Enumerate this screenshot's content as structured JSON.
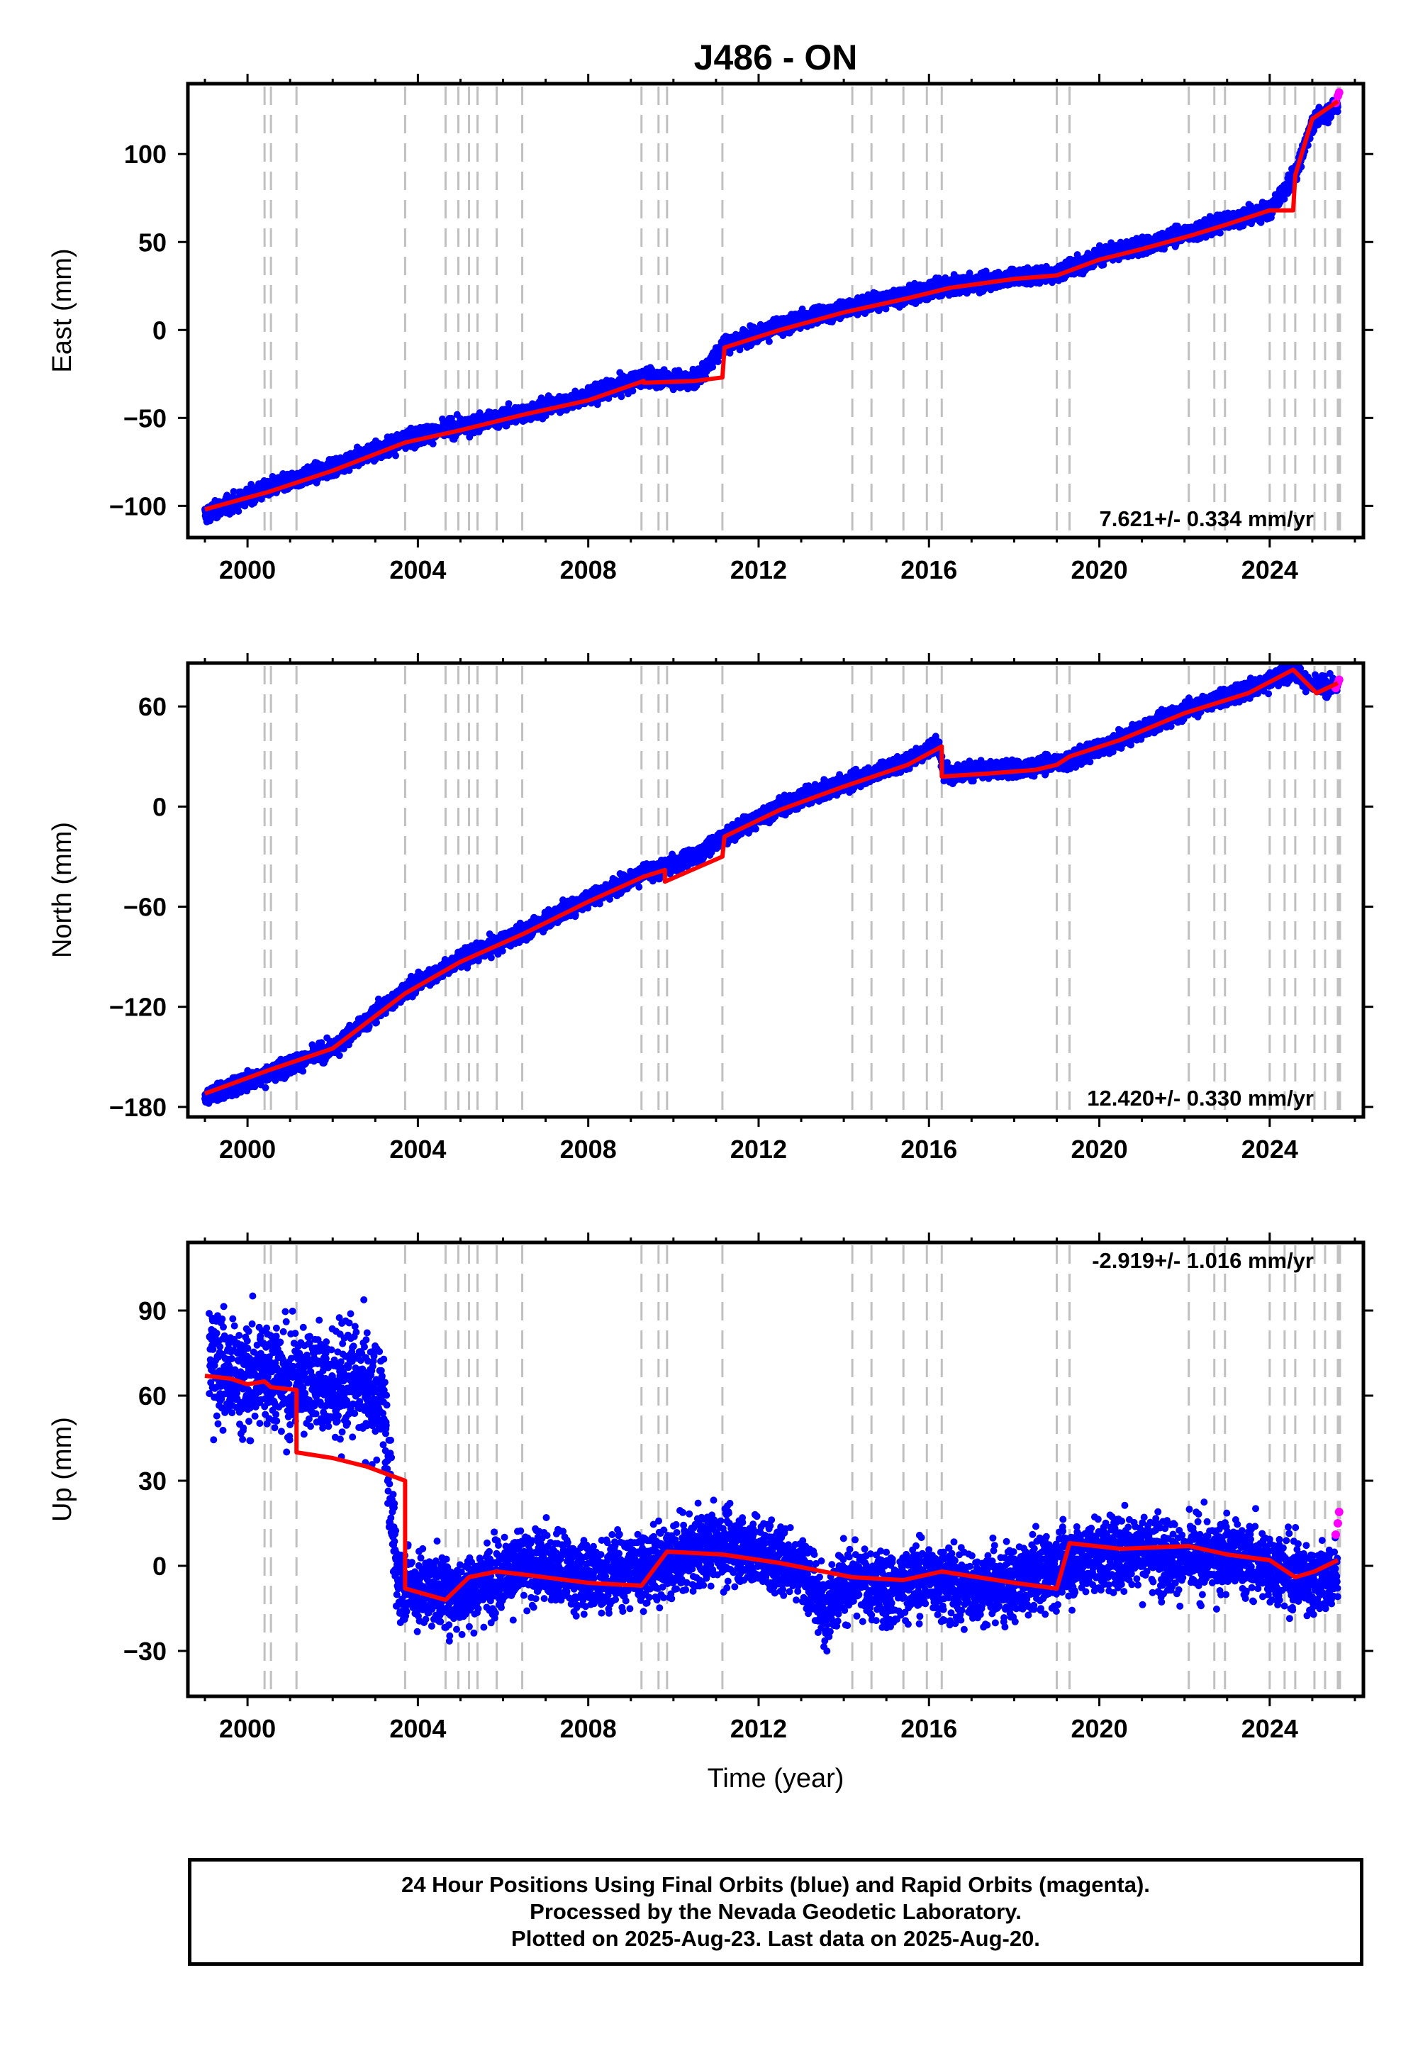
{
  "title": "J486 - ON",
  "footer": {
    "line1": "24 Hour Positions Using Final Orbits (blue) and Rapid Orbits (magenta).",
    "line2": "Processed by the Nevada Geodetic Laboratory.",
    "line3": "Plotted on 2025-Aug-23. Last data on 2025-Aug-20."
  },
  "colors": {
    "final_orbits": "#0000ff",
    "rapid_orbits": "#ff00ff",
    "model": "#ff0000",
    "event_lines": "#c0c0c0"
  },
  "chart_data": [
    {
      "type": "scatter",
      "panel": "east",
      "ylabel": "East (mm)",
      "xlabel": "",
      "xlim": [
        1998.6,
        2026.2
      ],
      "ylim": [
        -118,
        140
      ],
      "xticks": [
        2000,
        2004,
        2008,
        2012,
        2016,
        2020,
        2024
      ],
      "yticks": [
        -100,
        -50,
        0,
        50,
        100
      ],
      "rate": "7.621+/- 0.334 mm/yr",
      "rate_position": "bottom-right",
      "series": [
        {
          "role": "final_orbits_daily_positions",
          "x": [
            1999.0,
            2000.5,
            2002.0,
            2003.7,
            2005.0,
            2006.5,
            2008.0,
            2009.3,
            2010.5,
            2011.2,
            2012.5,
            2014.0,
            2015.5,
            2016.5,
            2018.0,
            2019.0,
            2020.0,
            2021.0,
            2022.2,
            2023.0,
            2024.0,
            2024.6,
            2025.0,
            2025.6
          ],
          "values": [
            -105,
            -90,
            -78,
            -62,
            -55,
            -47,
            -38,
            -27,
            -29,
            -8,
            2,
            12,
            20,
            25,
            30,
            32,
            42,
            48,
            56,
            62,
            68,
            88,
            118,
            128
          ]
        },
        {
          "role": "rapid_orbits_daily_positions",
          "x": [
            2025.55,
            2025.6,
            2025.63
          ],
          "values": [
            129,
            133,
            135
          ]
        },
        {
          "role": "model_fit",
          "x": [
            1999.0,
            2000.5,
            2002.0,
            2003.7,
            2005.0,
            2006.5,
            2008.0,
            2009.3,
            2009.3,
            2010.5,
            2011.15,
            2011.2,
            2012.5,
            2014.0,
            2015.5,
            2016.5,
            2018.0,
            2019.0,
            2020.0,
            2021.0,
            2022.2,
            2023.0,
            2024.0,
            2024.55,
            2024.6,
            2025.0,
            2025.6
          ],
          "values": [
            -102,
            -92,
            -80,
            -64,
            -57,
            -48,
            -40,
            -29,
            -30,
            -29,
            -27,
            -10,
            0,
            10,
            18,
            24,
            29,
            31,
            40,
            46,
            54,
            60,
            68,
            68,
            88,
            120,
            130
          ]
        }
      ],
      "event_lines_x": [
        2000.4,
        2000.55,
        2001.15,
        2003.7,
        2004.65,
        2004.95,
        2005.2,
        2005.4,
        2005.85,
        2006.45,
        2009.25,
        2009.65,
        2009.85,
        2011.15,
        2014.2,
        2014.65,
        2015.4,
        2015.95,
        2016.3,
        2019.0,
        2019.3,
        2022.1,
        2022.7,
        2022.95,
        2024.0,
        2024.35,
        2024.6,
        2025.05,
        2025.3,
        2025.6,
        2025.65
      ]
    },
    {
      "type": "scatter",
      "panel": "north",
      "ylabel": "North (mm)",
      "xlabel": "",
      "xlim": [
        1998.6,
        2026.2
      ],
      "ylim": [
        -186,
        86
      ],
      "xticks": [
        2000,
        2004,
        2008,
        2012,
        2016,
        2020,
        2024
      ],
      "yticks": [
        -180,
        -120,
        -60,
        0,
        60
      ],
      "rate": "12.420+/- 0.330 mm/yr",
      "rate_position": "bottom-right",
      "series": [
        {
          "role": "final_orbits_daily_positions",
          "x": [
            1999.0,
            2000.5,
            2002.0,
            2003.7,
            2005.0,
            2006.5,
            2008.0,
            2009.3,
            2009.8,
            2010.5,
            2011.2,
            2012.5,
            2014.0,
            2015.5,
            2016.2,
            2016.35,
            2017.5,
            2018.5,
            2019.3,
            2020.5,
            2022.0,
            2023.5,
            2024.55,
            2025.0,
            2025.6
          ],
          "values": [
            -174,
            -160,
            -145,
            -110,
            -92,
            -75,
            -55,
            -40,
            -37,
            -30,
            -18,
            0,
            14,
            27,
            38,
            20,
            22,
            24,
            28,
            40,
            58,
            70,
            82,
            72,
            72
          ]
        },
        {
          "role": "rapid_orbits_daily_positions",
          "x": [
            2025.55,
            2025.6,
            2025.63
          ],
          "values": [
            71,
            74,
            76
          ]
        },
        {
          "role": "model_fit",
          "x": [
            1999.0,
            2000.5,
            2002.0,
            2003.7,
            2005.0,
            2006.5,
            2008.0,
            2009.3,
            2009.8,
            2009.8,
            2011.15,
            2011.2,
            2012.5,
            2014.0,
            2015.5,
            2016.3,
            2016.3,
            2017.5,
            2018.5,
            2019.0,
            2019.3,
            2020.5,
            2022.0,
            2023.5,
            2024.55,
            2025.1,
            2025.6
          ],
          "values": [
            -172,
            -158,
            -145,
            -112,
            -93,
            -76,
            -57,
            -42,
            -38,
            -45,
            -30,
            -18,
            -2,
            12,
            25,
            36,
            18,
            20,
            22,
            25,
            30,
            40,
            56,
            68,
            82,
            68,
            74
          ]
        }
      ],
      "event_lines_x": [
        2000.4,
        2000.55,
        2001.15,
        2003.7,
        2004.65,
        2004.95,
        2005.2,
        2005.4,
        2005.85,
        2006.45,
        2009.25,
        2009.65,
        2009.85,
        2011.15,
        2014.2,
        2014.65,
        2015.4,
        2015.95,
        2016.3,
        2019.0,
        2019.3,
        2022.1,
        2022.7,
        2022.95,
        2024.0,
        2024.35,
        2024.6,
        2025.05,
        2025.3,
        2025.6,
        2025.65
      ]
    },
    {
      "type": "scatter",
      "panel": "up",
      "ylabel": "Up (mm)",
      "xlabel": "Time (year)",
      "xlim": [
        1998.6,
        2026.2
      ],
      "ylim": [
        -46,
        114
      ],
      "xticks": [
        2000,
        2004,
        2008,
        2012,
        2016,
        2020,
        2024
      ],
      "yticks": [
        -30,
        0,
        30,
        60,
        90
      ],
      "rate": "-2.919+/- 1.016 mm/yr",
      "rate_position": "top-right",
      "series": [
        {
          "role": "final_orbits_daily_positions",
          "x": [
            1999.1,
            1999.5,
            2000.0,
            2000.5,
            2001.0,
            2001.5,
            2002.0,
            2002.5,
            2003.0,
            2003.2,
            2003.5,
            2004.0,
            2005.0,
            2006.0,
            2007.0,
            2008.0,
            2009.0,
            2010.0,
            2011.0,
            2012.0,
            2013.0,
            2013.5,
            2014.0,
            2015.0,
            2016.0,
            2017.0,
            2018.0,
            2019.0,
            2020.0,
            2021.0,
            2022.0,
            2023.0,
            2024.0,
            2025.0,
            2025.6
          ],
          "values": [
            75,
            68,
            65,
            70,
            64,
            68,
            62,
            66,
            60,
            58,
            -5,
            -8,
            -10,
            -2,
            0,
            -4,
            -1,
            2,
            8,
            5,
            0,
            -15,
            -6,
            -8,
            -4,
            -8,
            -6,
            0,
            4,
            6,
            2,
            4,
            0,
            -5,
            -4
          ]
        },
        {
          "role": "rapid_orbits_daily_positions",
          "x": [
            2025.55,
            2025.6,
            2025.63
          ],
          "values": [
            11,
            15,
            19
          ]
        },
        {
          "role": "model_fit",
          "x": [
            1999.0,
            1999.6,
            2000.0,
            2000.4,
            2000.55,
            2001.15,
            2001.15,
            2002.0,
            2002.8,
            2003.7,
            2003.7,
            2004.65,
            2005.2,
            2005.85,
            2006.45,
            2008.0,
            2009.25,
            2009.85,
            2011.15,
            2012.5,
            2014.2,
            2015.4,
            2016.3,
            2018.0,
            2019.0,
            2019.3,
            2020.5,
            2022.1,
            2023.0,
            2024.0,
            2024.6,
            2025.05,
            2025.6
          ],
          "values": [
            67,
            66,
            64,
            65,
            63,
            62,
            40,
            38,
            35,
            30,
            -8,
            -12,
            -4,
            -2,
            -3,
            -6,
            -7,
            5,
            4,
            1,
            -4,
            -5,
            -2,
            -6,
            -8,
            8,
            6,
            7,
            4,
            2,
            -4,
            -2,
            2
          ]
        }
      ],
      "event_lines_x": [
        2000.4,
        2000.55,
        2001.15,
        2003.7,
        2004.65,
        2004.95,
        2005.2,
        2005.4,
        2005.85,
        2006.45,
        2009.25,
        2009.65,
        2009.85,
        2011.15,
        2014.2,
        2014.65,
        2015.4,
        2015.95,
        2016.3,
        2019.0,
        2019.3,
        2022.1,
        2022.7,
        2022.95,
        2024.0,
        2024.35,
        2024.6,
        2025.05,
        2025.3,
        2025.6,
        2025.65
      ]
    }
  ]
}
